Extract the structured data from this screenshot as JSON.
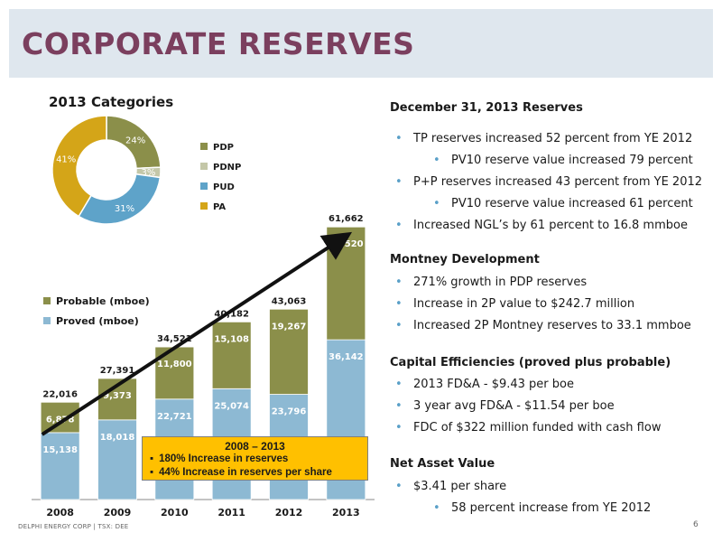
{
  "slide": {
    "title": "CORPORATE RESERVES",
    "footer": "DELPHI ENERGY CORP | TSX: DEE",
    "page_number": "6"
  },
  "pie": {
    "title": "2013 Categories",
    "slices": [
      {
        "label": "PDP",
        "value": 24,
        "text": "24%",
        "color": "#8b8f4a"
      },
      {
        "label": "PDNP",
        "value": 3,
        "text": "3%",
        "color": "#c4c7a8"
      },
      {
        "label": "PUD",
        "value": 31,
        "text": "31%",
        "color": "#5ea3c9"
      },
      {
        "label": "PA",
        "value": 41,
        "text": "41%",
        "color": "#d4a518"
      }
    ]
  },
  "chart_data": {
    "type": "bar",
    "stacked": true,
    "categories": [
      "2008",
      "2009",
      "2010",
      "2011",
      "2012",
      "2013"
    ],
    "series": [
      {
        "name": "Proved (mboe)",
        "values": [
          15138,
          18018,
          22721,
          25074,
          23796,
          36142
        ],
        "labels": [
          "15,138",
          "18,018",
          "22,721",
          "25,074",
          "23,796",
          "36,142"
        ],
        "color": "#8db9d3"
      },
      {
        "name": "Probable (mboe)",
        "values": [
          6878,
          9373,
          11800,
          15108,
          19267,
          25520
        ],
        "labels": [
          "6,878",
          "9,373",
          "11,800",
          "15,108",
          "19,267",
          "25,520"
        ],
        "color": "#8b8f4a"
      }
    ],
    "totals": [
      "22,016",
      "27,391",
      "34,521",
      "40,182",
      "43,063",
      "61,662"
    ],
    "ylim": [
      0,
      66000
    ],
    "legend_order": [
      "Probable (mboe)",
      "Proved (mboe)"
    ]
  },
  "callout": {
    "title": "2008 – 2013",
    "items": [
      "180% Increase in reserves",
      "44% Increase in reserves per share"
    ]
  },
  "reserves": {
    "heading": "December 31, 2013 Reserves",
    "b1": "TP reserves increased 52 percent from YE 2012",
    "b1s": "PV10 reserve value increased 79 percent",
    "b2": "P+P reserves increased 43 percent from YE 2012",
    "b2s": "PV10 reserve value increased 61 percent",
    "b3": "Increased NGL’s by 61 percent to 16.8 mmboe"
  },
  "montney": {
    "heading": "Montney Development",
    "b1": "271% growth in PDP reserves",
    "b2": "Increase in 2P value to $242.7 million",
    "b3": "Increased 2P Montney reserves to 33.1 mmboe"
  },
  "capital": {
    "heading": "Capital Efficiencies (proved plus probable)",
    "b1": "2013 FD&A - $9.43 per boe",
    "b2": "3 year avg FD&A - $11.54 per boe",
    "b3": "FDC of $322 million funded with cash flow"
  },
  "nav": {
    "heading": "Net Asset Value",
    "b1": "$3.41 per share",
    "b1s": "58 percent increase from YE 2012"
  }
}
